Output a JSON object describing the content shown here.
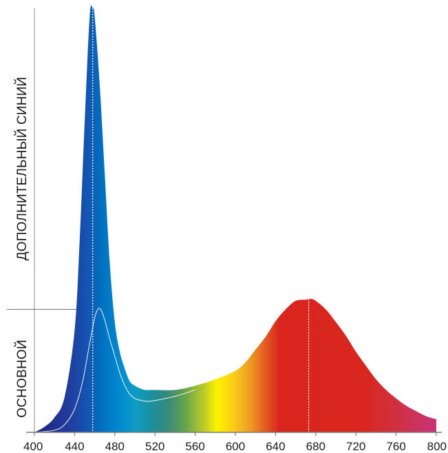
{
  "side_labels": {
    "upper": "ДОПОЛНИТЕЛЬНЫЙ СИНИЙ",
    "lower": "ОСНОВНОЙ"
  },
  "chart_data": {
    "type": "area",
    "title": "",
    "xlabel": "",
    "ylabel": "",
    "xlim": [
      400,
      800
    ],
    "ylim": [
      0,
      1
    ],
    "x_ticks": [
      400,
      440,
      480,
      520,
      560,
      600,
      640,
      680,
      720,
      760,
      800
    ],
    "grid": false,
    "fill": "visible-spectrum gradient",
    "series": [
      {
        "role": "total (upper filled curve)",
        "points": [
          [
            400,
            0
          ],
          [
            410,
            0.013
          ],
          [
            420,
            0.035
          ],
          [
            430,
            0.083
          ],
          [
            440,
            0.24
          ],
          [
            445,
            0.45
          ],
          [
            450,
            0.73
          ],
          [
            455,
            0.98
          ],
          [
            458,
            1.0
          ],
          [
            460,
            0.98
          ],
          [
            465,
            0.82
          ],
          [
            470,
            0.61
          ],
          [
            475,
            0.4
          ],
          [
            480,
            0.26
          ],
          [
            485,
            0.19
          ],
          [
            490,
            0.15
          ],
          [
            495,
            0.12
          ],
          [
            500,
            0.11
          ],
          [
            505,
            0.104
          ],
          [
            510,
            0.1
          ],
          [
            520,
            0.1
          ],
          [
            540,
            0.1
          ],
          [
            560,
            0.11
          ],
          [
            580,
            0.125
          ],
          [
            600,
            0.145
          ],
          [
            610,
            0.165
          ],
          [
            620,
            0.195
          ],
          [
            630,
            0.225
          ],
          [
            640,
            0.262
          ],
          [
            650,
            0.29
          ],
          [
            660,
            0.31
          ],
          [
            670,
            0.313
          ],
          [
            675,
            0.315
          ],
          [
            680,
            0.31
          ],
          [
            690,
            0.29
          ],
          [
            700,
            0.26
          ],
          [
            710,
            0.228
          ],
          [
            720,
            0.19
          ],
          [
            730,
            0.157
          ],
          [
            740,
            0.125
          ],
          [
            750,
            0.1
          ],
          [
            760,
            0.08
          ],
          [
            770,
            0.063
          ],
          [
            780,
            0.05
          ],
          [
            790,
            0.038
          ],
          [
            800,
            0.031
          ]
        ]
      },
      {
        "role": "basic (white inner curve)",
        "points": [
          [
            400,
            0
          ],
          [
            420,
            0.005
          ],
          [
            430,
            0.018
          ],
          [
            440,
            0.055
          ],
          [
            448,
            0.12
          ],
          [
            455,
            0.21
          ],
          [
            460,
            0.27
          ],
          [
            463,
            0.29
          ],
          [
            466,
            0.29
          ],
          [
            470,
            0.265
          ],
          [
            475,
            0.22
          ],
          [
            480,
            0.18
          ],
          [
            485,
            0.14
          ],
          [
            490,
            0.11
          ],
          [
            495,
            0.09
          ],
          [
            500,
            0.08
          ],
          [
            505,
            0.076
          ],
          [
            512,
            0.073
          ],
          [
            520,
            0.075
          ],
          [
            540,
            0.085
          ],
          [
            560,
            0.1
          ]
        ]
      }
    ],
    "markers": [
      {
        "x": 458,
        "label": ""
      },
      {
        "x": 673,
        "label": ""
      }
    ],
    "reference_level": 0.29
  }
}
